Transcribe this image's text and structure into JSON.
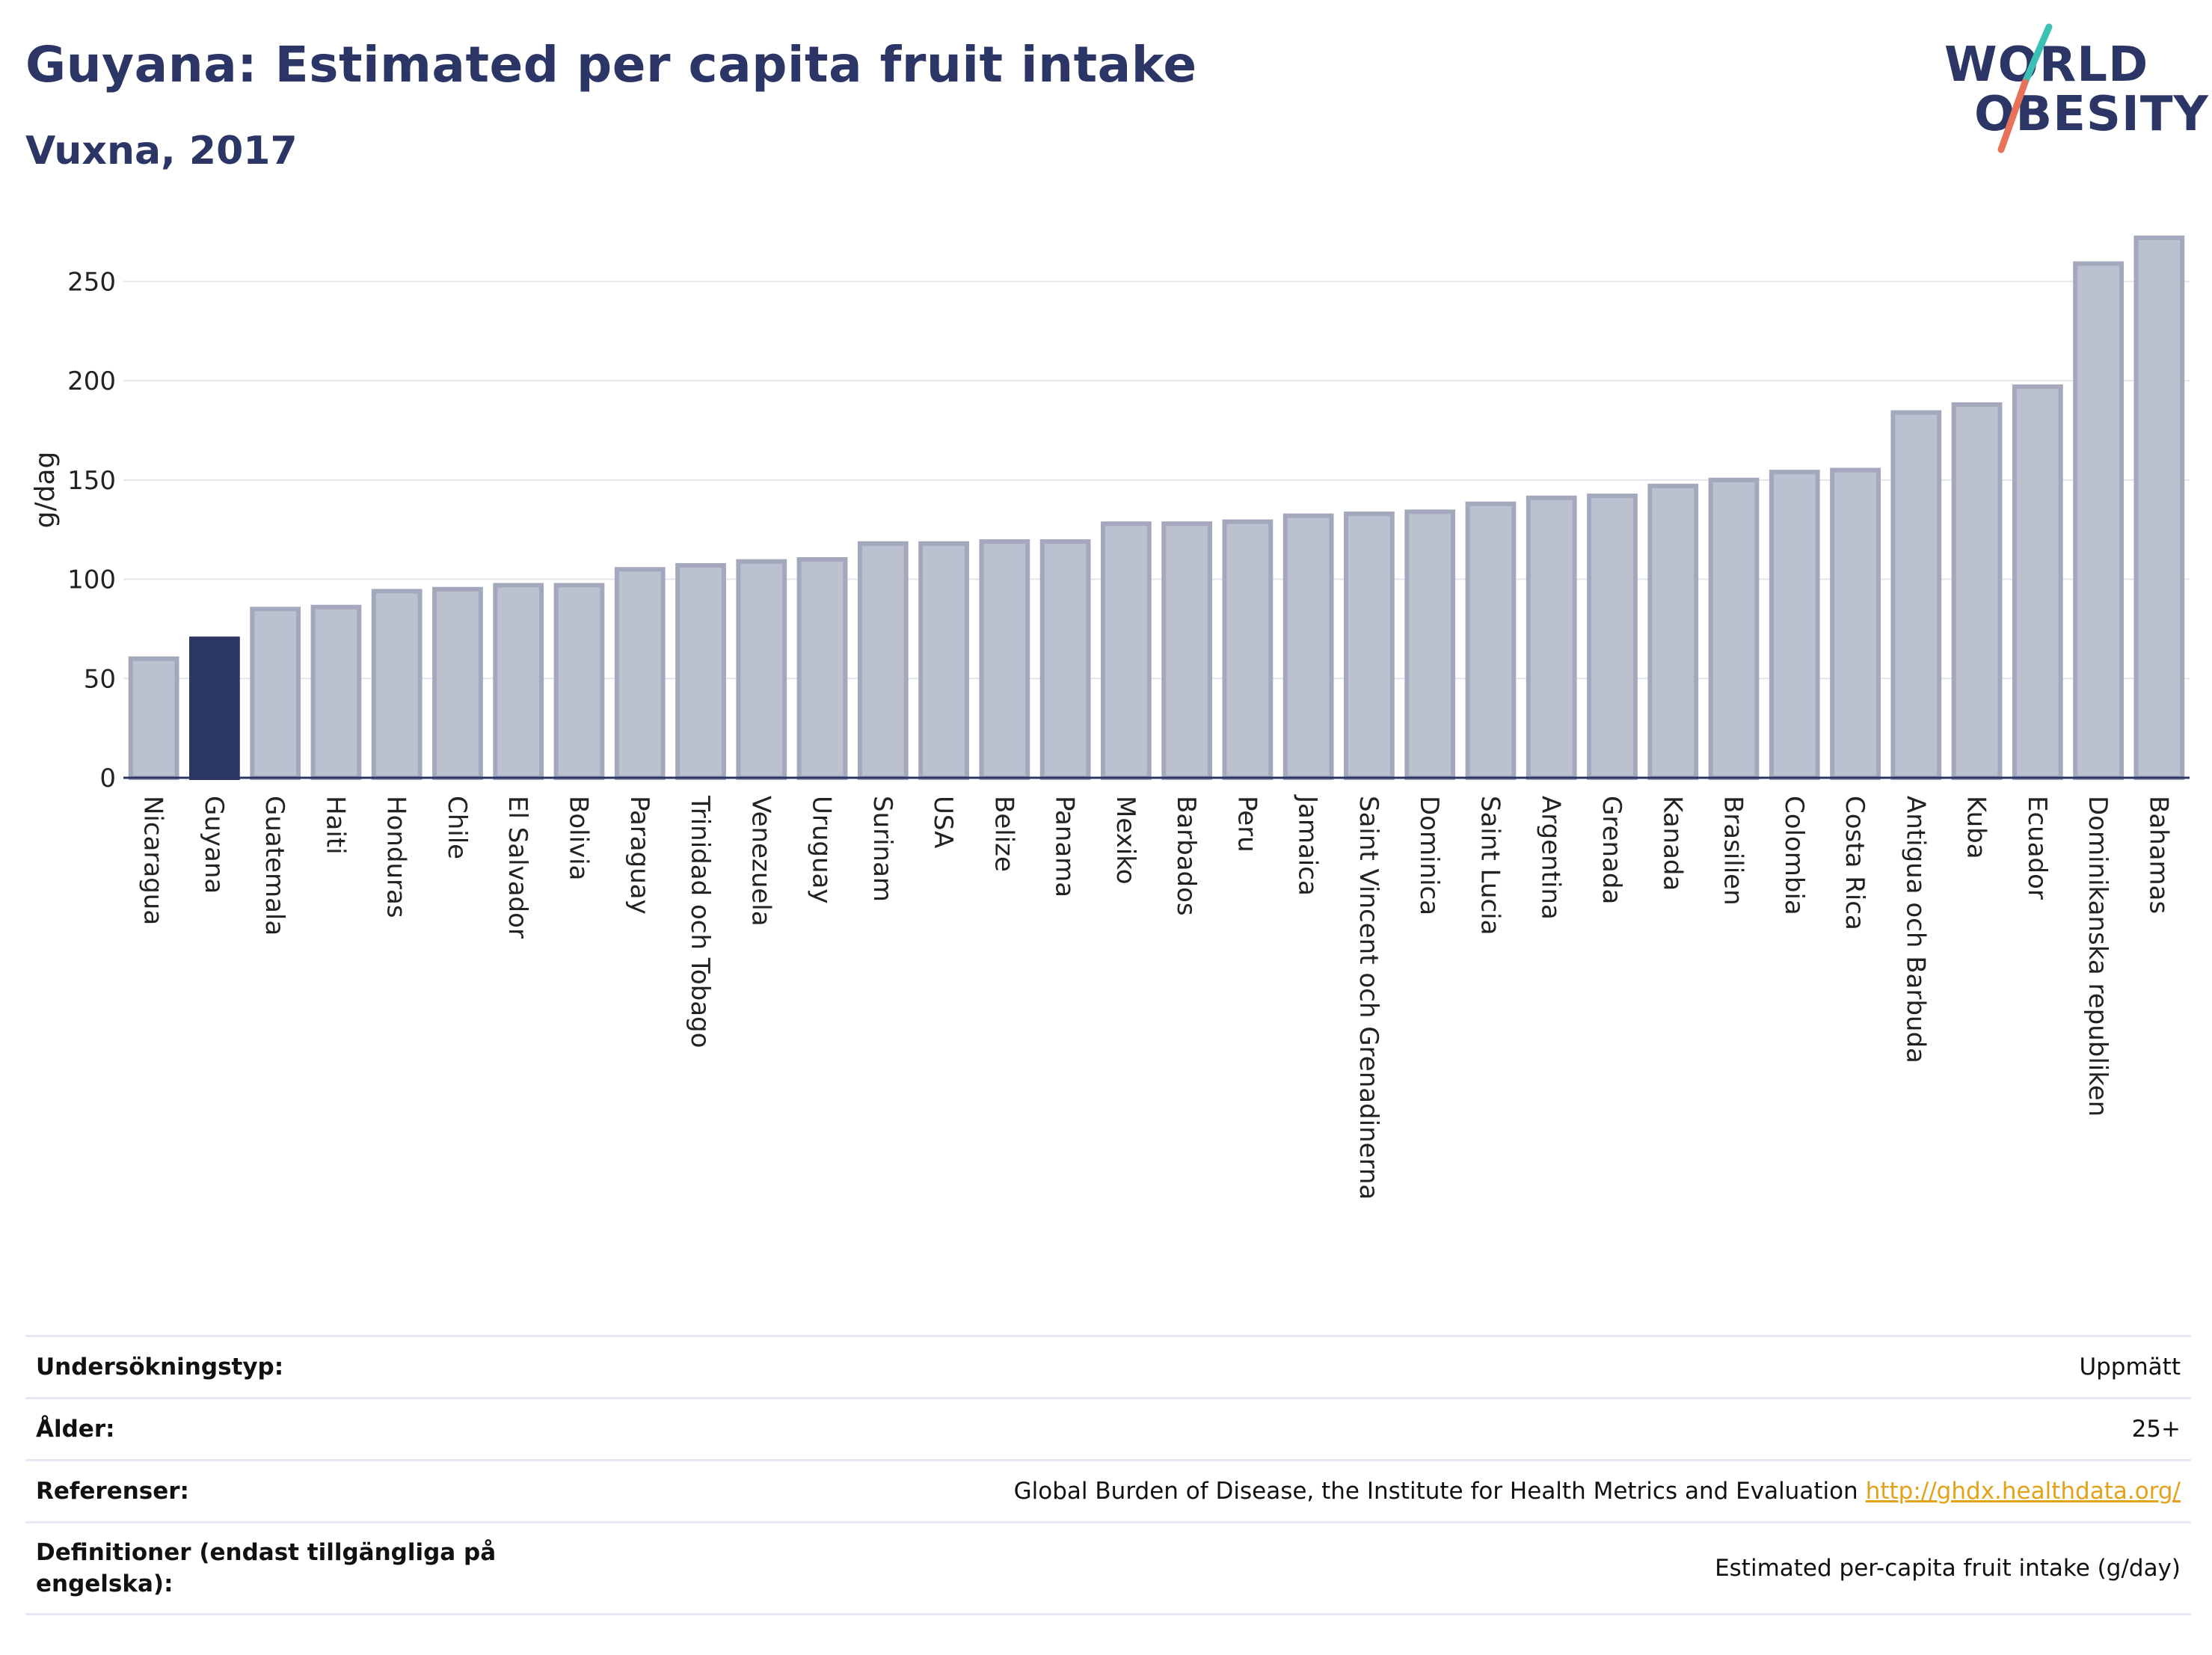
{
  "header": {
    "title": "Guyana: Estimated per capita fruit intake",
    "subtitle": "Vuxna, 2017"
  },
  "logo": {
    "line1": "WORLD",
    "line2": "OBESITY",
    "accent_colors": [
      "#3cbfb4",
      "#e8715a"
    ]
  },
  "chart_data": {
    "type": "bar",
    "ylabel": "g/dag",
    "ylim": [
      0,
      275
    ],
    "yticks": [
      0,
      50,
      100,
      150,
      200,
      250
    ],
    "grid": true,
    "highlight": "Guyana",
    "colors": {
      "bar": "#bcc1cf",
      "bar_stroke": "#a3a8bd",
      "highlight": "#2b3566"
    },
    "categories": [
      "Nicaragua",
      "Guyana",
      "Guatemala",
      "Haiti",
      "Honduras",
      "Chile",
      "El Salvador",
      "Bolivia",
      "Paraguay",
      "Trinidad och Tobago",
      "Venezuela",
      "Uruguay",
      "Surinam",
      "USA",
      "Belize",
      "Panama",
      "Mexiko",
      "Barbados",
      "Peru",
      "Jamaica",
      "Saint Vincent och Grenadinerna",
      "Dominica",
      "Saint Lucia",
      "Argentina",
      "Grenada",
      "Kanada",
      "Brasilien",
      "Colombia",
      "Costa Rica",
      "Antigua och Barbuda",
      "Kuba",
      "Ecuador",
      "Dominikanska republiken",
      "Bahamas"
    ],
    "values": [
      60,
      70,
      85,
      86,
      94,
      95,
      97,
      97,
      105,
      107,
      109,
      110,
      118,
      118,
      119,
      119,
      128,
      128,
      129,
      132,
      133,
      134,
      138,
      141,
      142,
      147,
      150,
      154,
      155,
      184,
      188,
      197,
      259,
      272
    ]
  },
  "info_table": [
    {
      "key": "Undersökningstyp:",
      "value": "Uppmätt"
    },
    {
      "key": "Ålder:",
      "value": "25+"
    },
    {
      "key": "Referenser:",
      "value": "Global Burden of Disease, the Institute for Health Metrics and Evaluation",
      "link": "http://ghdx.healthdata.org/"
    },
    {
      "key": "Definitioner (endast tillgängliga på engelska):",
      "value": "Estimated per-capita fruit intake (g/day)"
    }
  ]
}
